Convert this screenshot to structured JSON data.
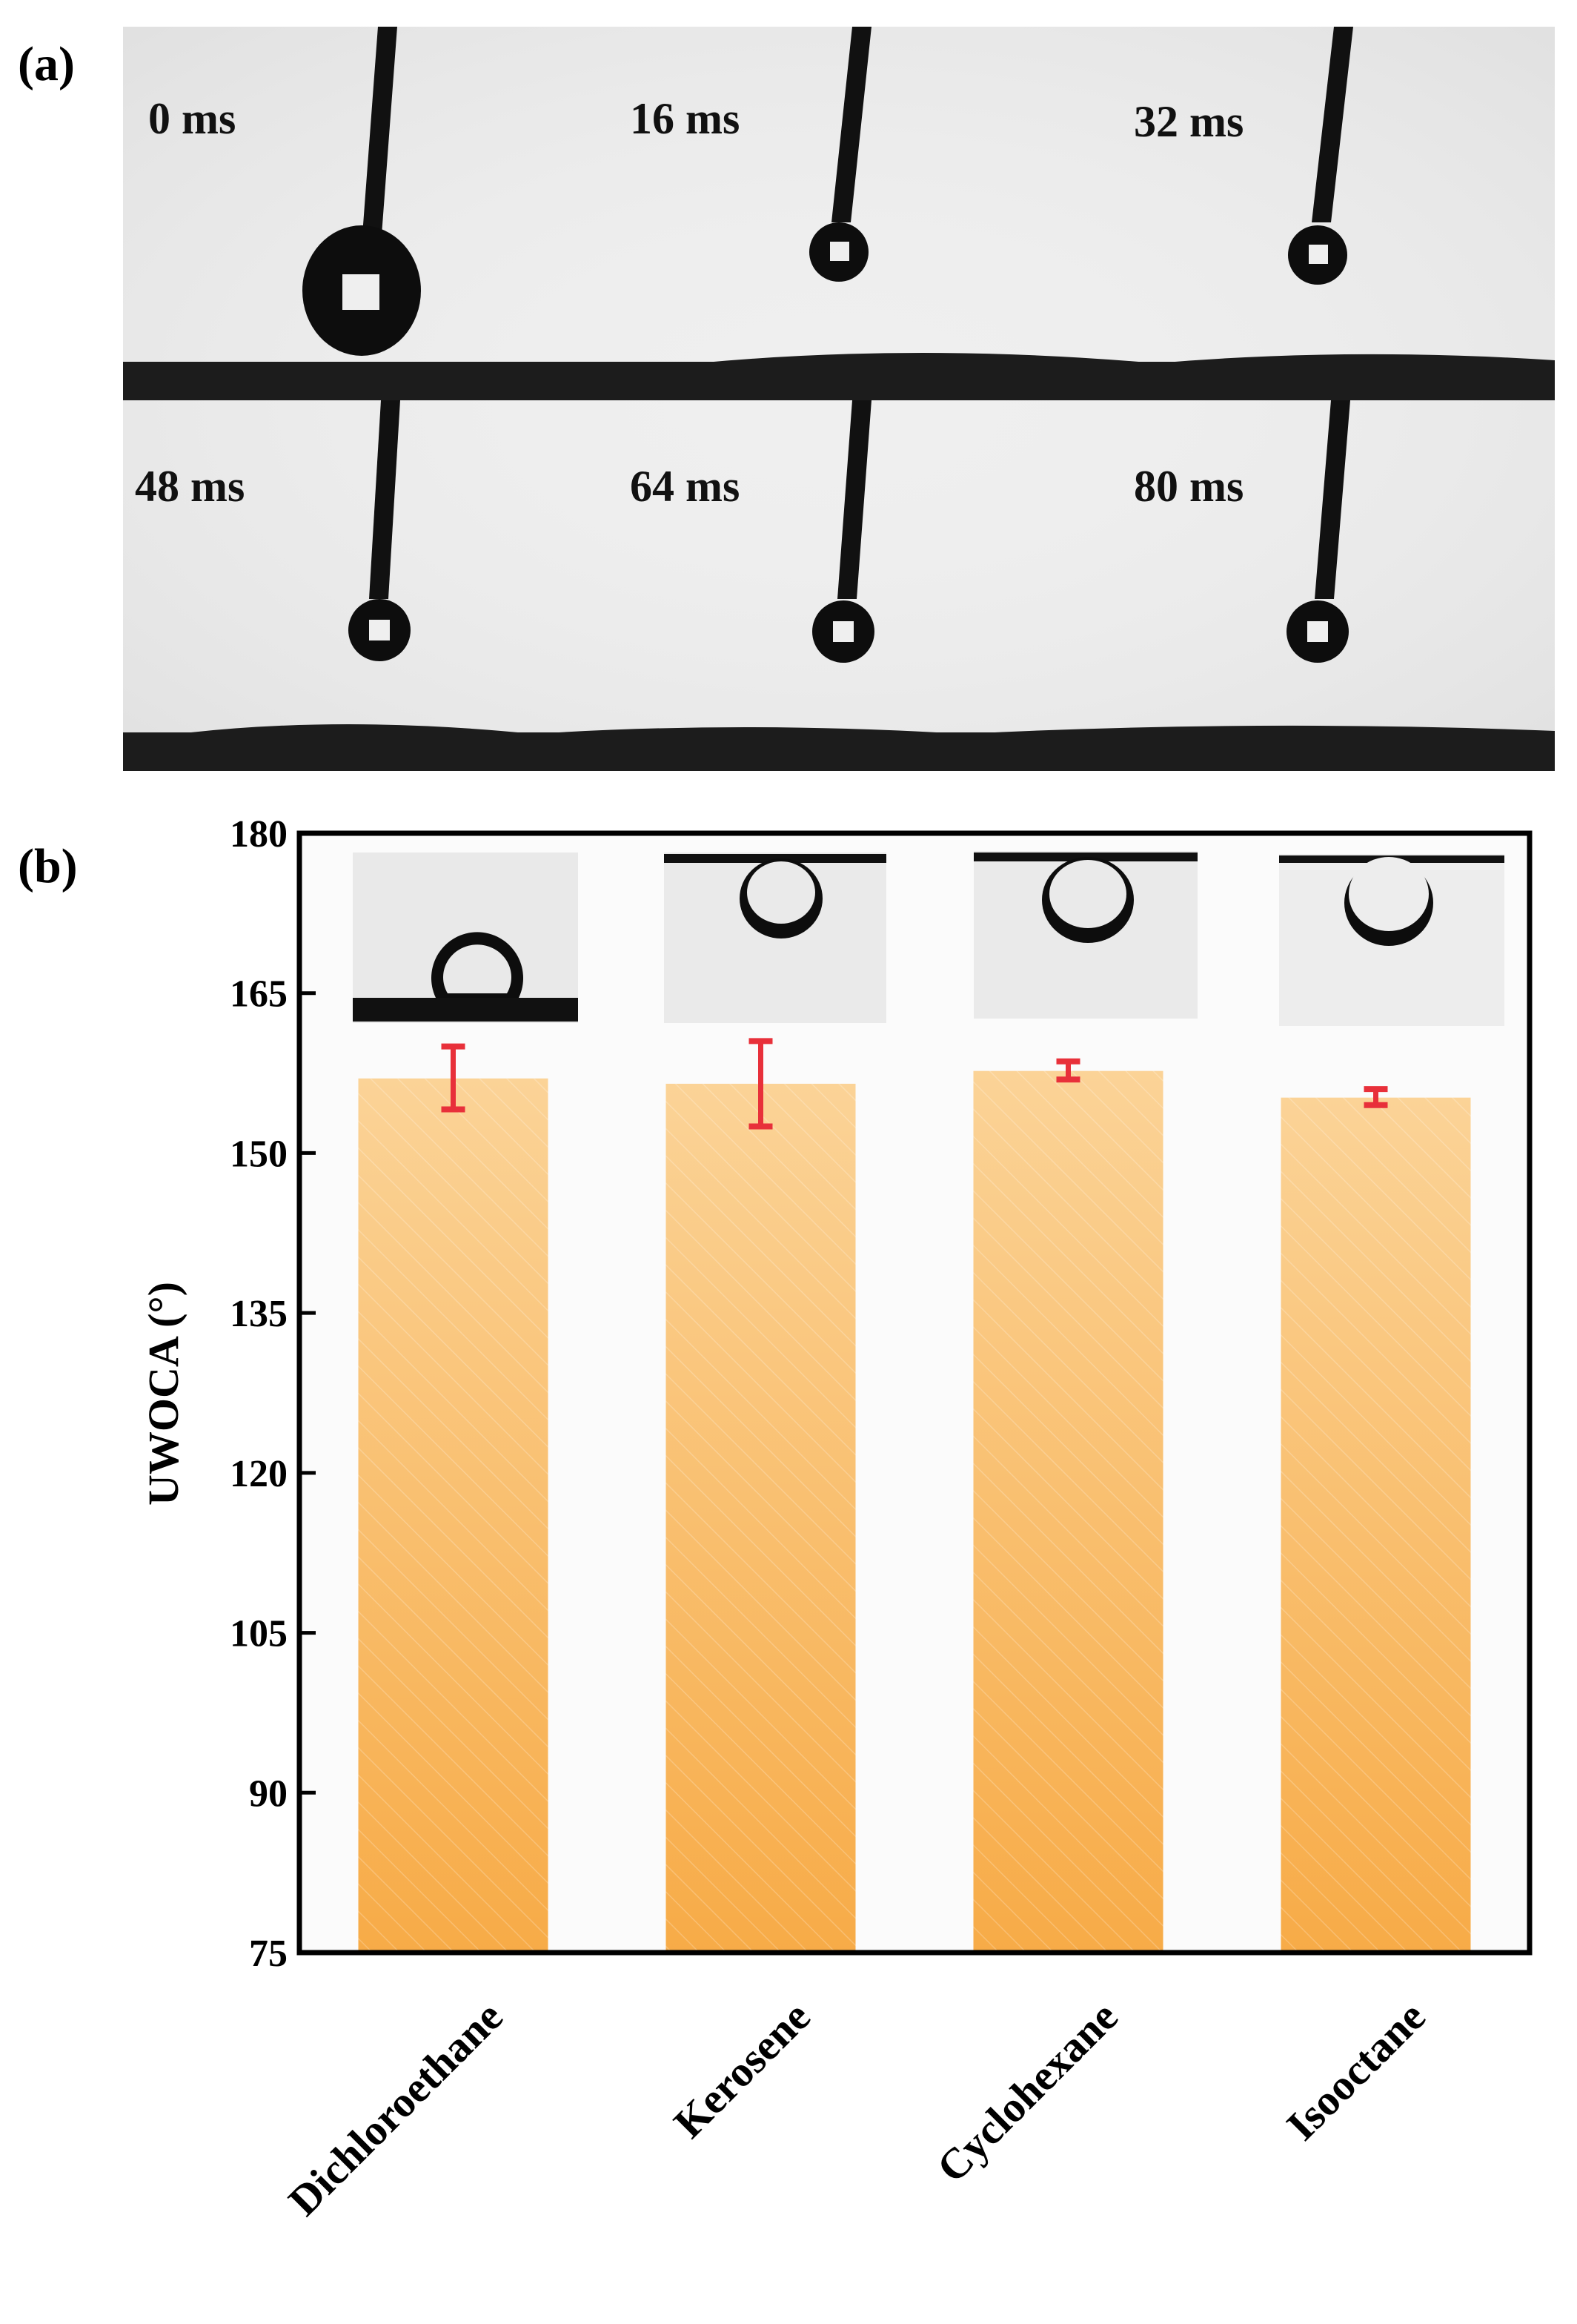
{
  "panel_a": {
    "label": "(a)",
    "frames": [
      {
        "time": "0 ms"
      },
      {
        "time": "16 ms"
      },
      {
        "time": "32 ms"
      },
      {
        "time": "48 ms"
      },
      {
        "time": "64 ms"
      },
      {
        "time": "80 ms"
      }
    ]
  },
  "panel_b": {
    "label": "(b)"
  },
  "chart_data": {
    "type": "bar",
    "title": "",
    "xlabel": "",
    "ylabel": "UWOCA (°)",
    "categories": [
      "Dichloroethane",
      "Kerosene",
      "Cyclohexane",
      "Isooctane"
    ],
    "values": [
      157.0,
      156.5,
      157.7,
      155.2
    ],
    "error_low": [
      154.1,
      152.5,
      156.9,
      154.5
    ],
    "error_high": [
      160.0,
      160.5,
      158.6,
      156.0
    ],
    "ylim": [
      75,
      180
    ],
    "yticks": [
      75,
      90,
      105,
      120,
      135,
      150,
      165,
      180
    ],
    "grid": false,
    "legend": "none",
    "colors": {
      "bar_top": "#fbd397",
      "bar_bottom": "#f7ab47",
      "error_bar": "#e8303a",
      "axis": "#000000"
    }
  }
}
